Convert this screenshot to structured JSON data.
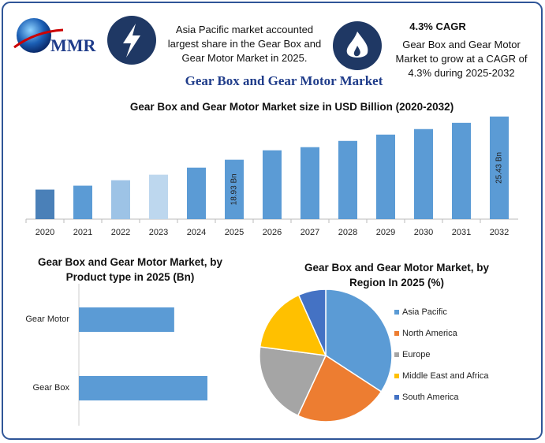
{
  "header": {
    "logo": "MMR",
    "info1": "Asia Pacific market accounted largest share in the Gear Box and Gear Motor Market in 2025.",
    "cagr_title": "4.3% CAGR",
    "info2": "Gear Box and Gear Motor Market to grow at a CAGR of 4.3% during 2025-2032",
    "title": "Gear Box and Gear Motor Market"
  },
  "chart_data": [
    {
      "type": "bar",
      "title": "Gear Box and Gear Motor Market size in USD Billion (2020-2032)",
      "categories": [
        "2020",
        "2021",
        "2022",
        "2023",
        "2024",
        "2025",
        "2026",
        "2027",
        "2028",
        "2029",
        "2030",
        "2031",
        "2032"
      ],
      "values": [
        14.44,
        15.03,
        15.85,
        16.68,
        17.74,
        18.93,
        20.35,
        20.82,
        21.76,
        22.71,
        23.54,
        24.48,
        25.43
      ],
      "value_labels": [
        null,
        null,
        null,
        null,
        null,
        "18.93 Bn",
        null,
        null,
        null,
        null,
        null,
        null,
        "25.43 Bn"
      ],
      "colors": [
        "#4a80b8",
        "#5b9bd5",
        "#9dc3e6",
        "#bdd7ee",
        "#5b9bd5",
        "#5b9bd5",
        "#5b9bd5",
        "#5b9bd5",
        "#5b9bd5",
        "#5b9bd5",
        "#5b9bd5",
        "#5b9bd5",
        "#5b9bd5"
      ],
      "ylim": [
        10,
        26
      ]
    },
    {
      "type": "barh",
      "title": "Gear Box and Gear Motor Market, by Product type in 2025 (Bn)",
      "categories": [
        "Gear Motor",
        "Gear Box"
      ],
      "values": [
        8.06,
        10.87
      ],
      "color": "#5b9bd5"
    },
    {
      "type": "pie",
      "title": "Gear Box and Gear Motor Market, by Region In 2025 (%)",
      "categories": [
        "Asia Pacific",
        "North America",
        "Europe",
        "Middle East and Africa",
        "South America"
      ],
      "values": [
        34.2,
        22.7,
        20.2,
        16.2,
        6.7
      ],
      "colors": [
        "#5b9bd5",
        "#ed7d31",
        "#a5a5a5",
        "#ffc000",
        "#4472c4"
      ],
      "legend": "right"
    }
  ]
}
